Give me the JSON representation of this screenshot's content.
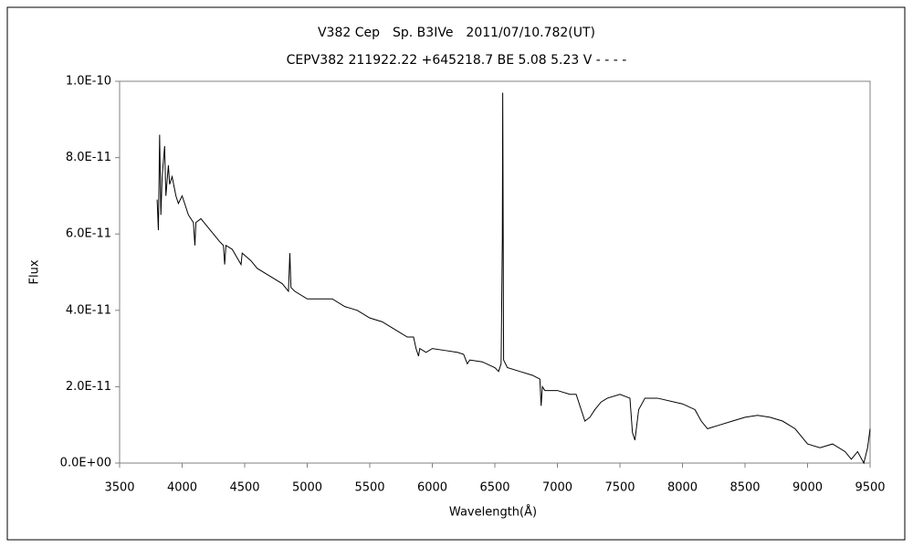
{
  "chart_data": {
    "type": "line",
    "title": "V382 Cep　Sp. B3IVe　2011/07/10.782(UT)",
    "subtitle": "CEPV382 211922.22 +645218.7 BE 5.08 5.23 V - - - -",
    "x_label": "Wavelength(Å)",
    "y_label": "Flux",
    "xlim": [
      3500,
      9500
    ],
    "xticks": [
      3500,
      4000,
      4500,
      5000,
      5500,
      6000,
      6500,
      7000,
      7500,
      8000,
      8500,
      9000,
      9500
    ],
    "ylim": [
      0,
      1e-10
    ],
    "yticks": [
      {
        "value": 0,
        "label": "0.0E+00"
      },
      {
        "value": 2e-11,
        "label": "2.0E-11"
      },
      {
        "value": 4e-11,
        "label": "4.0E-11"
      },
      {
        "value": 6e-11,
        "label": "6.0E-11"
      },
      {
        "value": 8e-11,
        "label": "8.0E-11"
      },
      {
        "value": 1e-10,
        "label": "1.0E-10"
      }
    ],
    "series": [
      {
        "color": "#000000",
        "x": [
          3800,
          3810,
          3820,
          3830,
          3840,
          3860,
          3870,
          3890,
          3900,
          3920,
          3950,
          3970,
          4000,
          4050,
          4090,
          4102,
          4110,
          4150,
          4200,
          4250,
          4300,
          4330,
          4340,
          4350,
          4400,
          4471,
          4480,
          4550,
          4600,
          4700,
          4800,
          4850,
          4861,
          4870,
          4900,
          5000,
          5100,
          5200,
          5300,
          5400,
          5500,
          5600,
          5700,
          5800,
          5850,
          5870,
          5890,
          5900,
          5950,
          6000,
          6100,
          6200,
          6250,
          6280,
          6300,
          6400,
          6500,
          6530,
          6550,
          6560,
          6563,
          6570,
          6600,
          6700,
          6800,
          6860,
          6870,
          6880,
          6900,
          7000,
          7100,
          7150,
          7190,
          7220,
          7260,
          7300,
          7350,
          7400,
          7500,
          7580,
          7600,
          7620,
          7650,
          7700,
          7800,
          8000,
          8100,
          8150,
          8200,
          8300,
          8400,
          8500,
          8600,
          8700,
          8800,
          8900,
          8950,
          9000,
          9100,
          9200,
          9300,
          9350,
          9400,
          9450,
          9480,
          9500
        ],
        "values": [
          6.9e-11,
          6.1e-11,
          8.6e-11,
          6.5e-11,
          7.5e-11,
          8.3e-11,
          7e-11,
          7.8e-11,
          7.3e-11,
          7.5e-11,
          7e-11,
          6.8e-11,
          7e-11,
          6.5e-11,
          6.3e-11,
          5.7e-11,
          6.3e-11,
          6.4e-11,
          6.2e-11,
          6e-11,
          5.8e-11,
          5.7e-11,
          5.2e-11,
          5.7e-11,
          5.6e-11,
          5.2e-11,
          5.5e-11,
          5.3e-11,
          5.1e-11,
          4.9e-11,
          4.7e-11,
          4.5e-11,
          5.5e-11,
          4.6e-11,
          4.5e-11,
          4.3e-11,
          4.3e-11,
          4.3e-11,
          4.1e-11,
          4e-11,
          3.8e-11,
          3.7e-11,
          3.5e-11,
          3.3e-11,
          3.3e-11,
          3e-11,
          2.8e-11,
          3e-11,
          2.9e-11,
          3e-11,
          2.95e-11,
          2.9e-11,
          2.85e-11,
          2.6e-11,
          2.7e-11,
          2.65e-11,
          2.5e-11,
          2.4e-11,
          2.6e-11,
          5.9e-11,
          9.7e-11,
          2.7e-11,
          2.5e-11,
          2.4e-11,
          2.3e-11,
          2.2e-11,
          1.5e-11,
          2e-11,
          1.9e-11,
          1.9e-11,
          1.8e-11,
          1.8e-11,
          1.4e-11,
          1.1e-11,
          1.2e-11,
          1.4e-11,
          1.6e-11,
          1.7e-11,
          1.8e-11,
          1.7e-11,
          8e-12,
          6e-12,
          1.4e-11,
          1.7e-11,
          1.7e-11,
          1.55e-11,
          1.4e-11,
          1.1e-11,
          9e-12,
          1e-11,
          1.1e-11,
          1.2e-11,
          1.25e-11,
          1.2e-11,
          1.1e-11,
          9e-12,
          7e-12,
          5e-12,
          4e-12,
          5e-12,
          3e-12,
          1e-12,
          3e-12,
          0,
          4e-12,
          9e-12
        ]
      }
    ]
  }
}
